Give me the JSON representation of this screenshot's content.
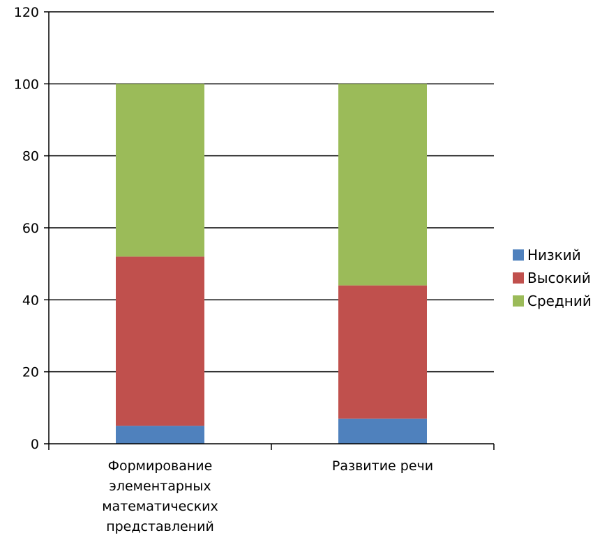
{
  "chart_data": {
    "type": "bar",
    "stacked": true,
    "categories": [
      [
        "Формирование",
        "элементарных",
        "математических",
        "представлений"
      ],
      [
        "Развитие речи"
      ]
    ],
    "series": [
      {
        "name": "Низкий",
        "color": "#4f81bd",
        "values": [
          5,
          7
        ]
      },
      {
        "name": "Высокий",
        "color": "#c0504d",
        "values": [
          47,
          37
        ]
      },
      {
        "name": "Средний",
        "color": "#9bbb59",
        "values": [
          48,
          56
        ]
      }
    ],
    "title": "",
    "xlabel": "",
    "ylabel": "",
    "ylim": [
      0,
      120
    ],
    "yticks": [
      0,
      20,
      40,
      60,
      80,
      100,
      120
    ],
    "grid": true,
    "legend": "right"
  }
}
